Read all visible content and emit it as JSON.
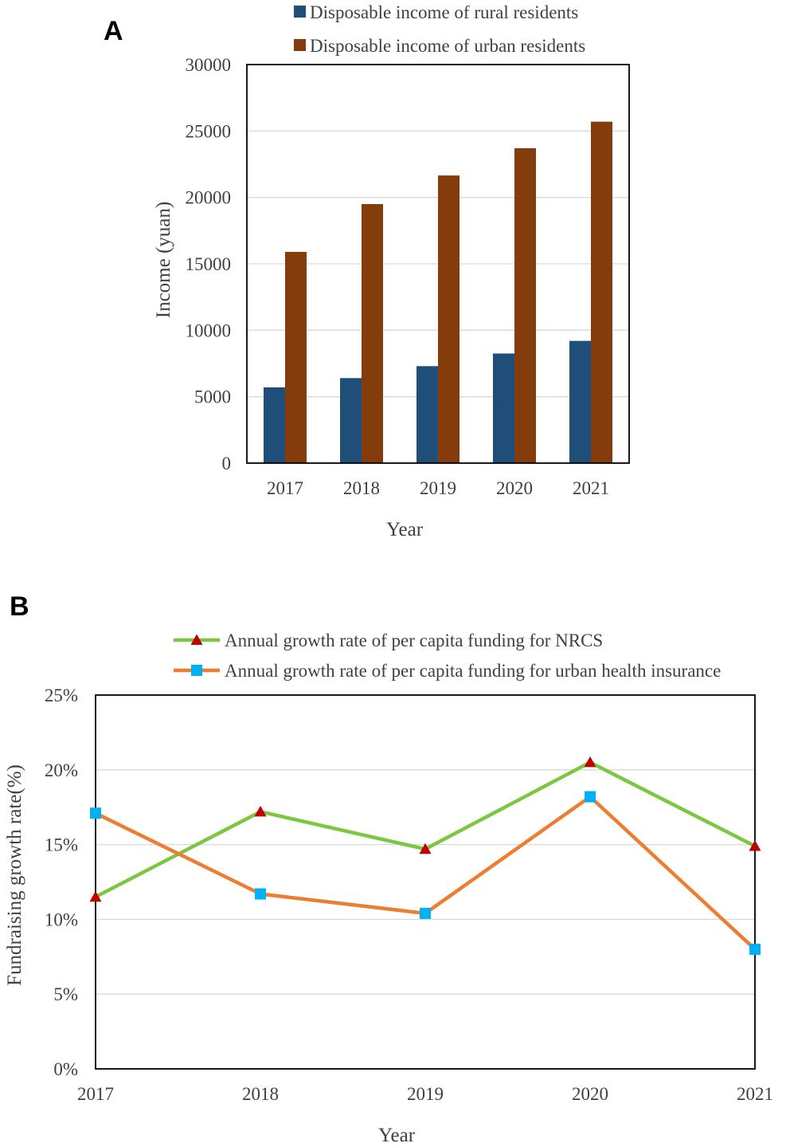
{
  "colors": {
    "rural_bar": "#1F4E79",
    "urban_bar": "#843C0C",
    "nrcs_line": "#7DC642",
    "nrcs_marker": "#C00000",
    "urban_line": "#ED7D31",
    "urban_marker": "#00B0F0",
    "gridline": "#D9D9D9",
    "axis_text": "#404040"
  },
  "chart_data": [
    {
      "panel": "A",
      "type": "bar",
      "title": "",
      "xlabel": "Year",
      "ylabel": "Income (yuan)",
      "categories": [
        "2017",
        "2018",
        "2019",
        "2020",
        "2021"
      ],
      "ylim": [
        0,
        30000
      ],
      "yticks": [
        0,
        5000,
        10000,
        15000,
        20000,
        25000,
        30000
      ],
      "ytick_labels": [
        "0",
        "5000",
        "10000",
        "15000",
        "20000",
        "25000",
        "30000"
      ],
      "grid": true,
      "legend_position": "top-right",
      "series": [
        {
          "name": "Disposable income of rural residents",
          "values": [
            5700,
            6400,
            7300,
            8250,
            9200
          ]
        },
        {
          "name": "Disposable income of urban residents",
          "values": [
            15900,
            19500,
            21650,
            23700,
            25700
          ]
        }
      ]
    },
    {
      "panel": "B",
      "type": "line",
      "title": "",
      "xlabel": "Year",
      "ylabel": "Fundraising growth rate(%)",
      "categories": [
        "2017",
        "2018",
        "2019",
        "2020",
        "2021"
      ],
      "ylim": [
        0,
        25
      ],
      "yticks": [
        0,
        5,
        10,
        15,
        20,
        25
      ],
      "ytick_labels": [
        "0%",
        "5%",
        "10%",
        "15%",
        "20%",
        "25%"
      ],
      "grid": true,
      "legend_position": "top-center",
      "series": [
        {
          "name": "Annual growth rate of per capita funding for NRCS",
          "values": [
            11.5,
            17.2,
            14.7,
            20.5,
            14.9
          ]
        },
        {
          "name": "Annual growth rate of per capita funding for urban health insurance",
          "values": [
            17.1,
            11.7,
            10.4,
            18.2,
            8.0
          ]
        }
      ]
    }
  ]
}
